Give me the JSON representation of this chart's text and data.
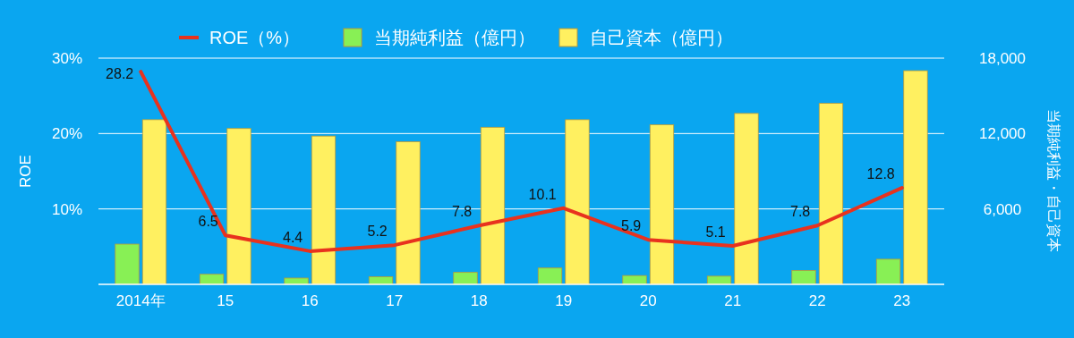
{
  "chart_data": {
    "type": "bar",
    "categories": [
      "2014年",
      "15",
      "16",
      "17",
      "18",
      "19",
      "20",
      "21",
      "22",
      "23"
    ],
    "series": [
      {
        "name": "ROE（%）",
        "type": "line",
        "color": "#e8321e",
        "values": [
          28.2,
          6.5,
          4.4,
          5.2,
          7.8,
          10.1,
          5.9,
          5.1,
          7.8,
          12.8
        ],
        "value_labels": [
          "28.2",
          "6.5",
          "4.4",
          "5.2",
          "7.8",
          "10.1",
          "5.9",
          "5.1",
          "7.8",
          "12.8"
        ]
      },
      {
        "name": "当期純利益（億円）",
        "color": "#88f055",
        "axis": "y2",
        "values": [
          3200,
          800,
          500,
          600,
          950,
          1300,
          700,
          650,
          1100,
          2000
        ]
      },
      {
        "name": "自己資本（億円）",
        "color": "#fff060",
        "axis": "y2",
        "values": [
          13100,
          12400,
          11800,
          11350,
          12500,
          13100,
          12700,
          13600,
          14400,
          17000
        ]
      }
    ],
    "ylabel": "ROE",
    "y2label": "当期純利益・自己資本",
    "ylim": [
      0,
      30
    ],
    "yticks": [
      {
        "value": 10,
        "label": "10%"
      },
      {
        "value": 20,
        "label": "20%"
      },
      {
        "value": 30,
        "label": "30%"
      }
    ],
    "y2lim": [
      0,
      18000
    ],
    "y2ticks": [
      {
        "value": 6000,
        "label": "6,000"
      },
      {
        "value": 12000,
        "label": "12,000"
      },
      {
        "value": 18000,
        "label": "18,000"
      }
    ],
    "grid": "y",
    "legend": "top"
  }
}
